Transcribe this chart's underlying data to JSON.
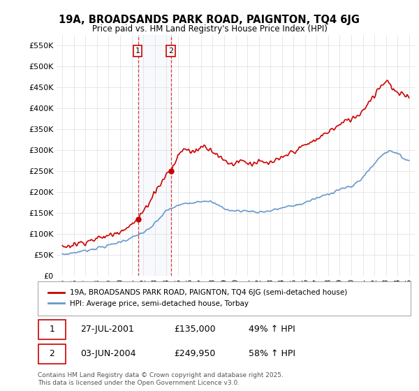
{
  "title": "19A, BROADSANDS PARK ROAD, PAIGNTON, TQ4 6JG",
  "subtitle": "Price paid vs. HM Land Registry's House Price Index (HPI)",
  "legend_line1": "19A, BROADSANDS PARK ROAD, PAIGNTON, TQ4 6JG (semi-detached house)",
  "legend_line2": "HPI: Average price, semi-detached house, Torbay",
  "footnote": "Contains HM Land Registry data © Crown copyright and database right 2025.\nThis data is licensed under the Open Government Licence v3.0.",
  "purchases": [
    {
      "label": "1",
      "date": "27-JUL-2001",
      "price": 135000,
      "pct": "49% ↑ HPI",
      "x": 2001.57
    },
    {
      "label": "2",
      "date": "03-JUN-2004",
      "price": 249950,
      "pct": "58% ↑ HPI",
      "x": 2004.42
    }
  ],
  "xlim": [
    1994.5,
    2025.5
  ],
  "ylim": [
    0,
    575000
  ],
  "yticks": [
    0,
    50000,
    100000,
    150000,
    200000,
    250000,
    300000,
    350000,
    400000,
    450000,
    500000,
    550000
  ],
  "ytick_labels": [
    "£0",
    "£50K",
    "£100K",
    "£150K",
    "£200K",
    "£250K",
    "£300K",
    "£350K",
    "£400K",
    "£450K",
    "£500K",
    "£550K"
  ],
  "xticks": [
    1995,
    1996,
    1997,
    1998,
    1999,
    2000,
    2001,
    2002,
    2003,
    2004,
    2005,
    2006,
    2007,
    2008,
    2009,
    2010,
    2011,
    2012,
    2013,
    2014,
    2015,
    2016,
    2017,
    2018,
    2019,
    2020,
    2021,
    2022,
    2023,
    2024,
    2025
  ],
  "red_color": "#cc0000",
  "blue_color": "#6699cc",
  "shade_color": "#dce6f5",
  "vline_color": "#cc0000",
  "background_color": "#ffffff",
  "grid_color": "#dddddd",
  "purchase1_x": 2001.57,
  "purchase2_x": 2004.42
}
